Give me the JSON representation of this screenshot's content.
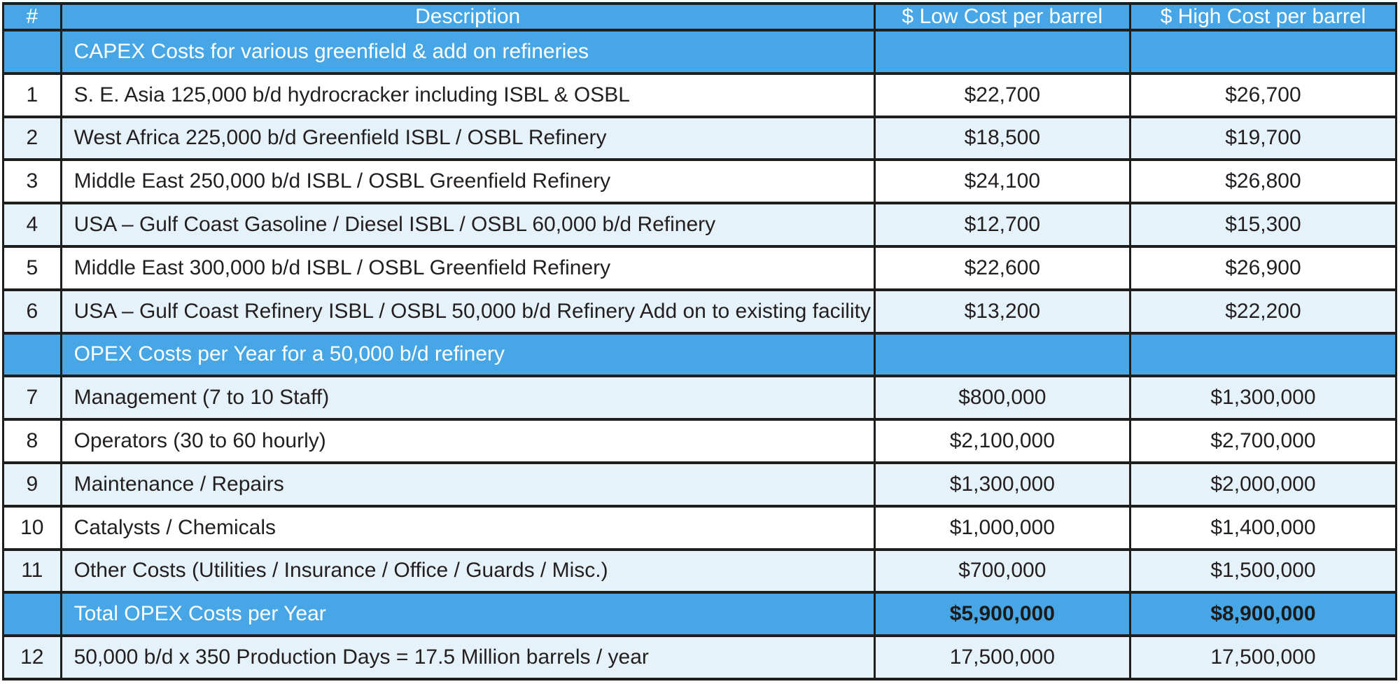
{
  "colors": {
    "header_blue": "#47a7e6",
    "row_light": "#e6f2fa",
    "row_white": "#ffffff",
    "border": "#1e1e1c",
    "text_dark": "#231f20",
    "text_light": "#ffffff"
  },
  "table": {
    "columns": {
      "num": "#",
      "description": "Description",
      "low": "$ Low Cost per barrel",
      "high": "$ High Cost per barrel"
    },
    "rows": [
      {
        "type": "section",
        "num": "",
        "description": "CAPEX Costs for various greenfield & add on refineries",
        "low": "",
        "high": ""
      },
      {
        "type": "data",
        "shade": "white",
        "num": "1",
        "description": "S. E. Asia 125,000 b/d hydrocracker including ISBL & OSBL",
        "low": "$22,700",
        "high": "$26,700"
      },
      {
        "type": "data",
        "shade": "light",
        "num": "2",
        "description": "West Africa 225,000 b/d Greenfield  ISBL / OSBL Refinery",
        "low": "$18,500",
        "high": "$19,700"
      },
      {
        "type": "data",
        "shade": "white",
        "num": "3",
        "description": "Middle East 250,000 b/d ISBL / OSBL Greenfield  Refinery",
        "low": "$24,100",
        "high": "$26,800"
      },
      {
        "type": "data",
        "shade": "light",
        "num": "4",
        "description": "USA – Gulf Coast Gasoline / Diesel ISBL / OSBL 60,000 b/d  Refinery",
        "low": "$12,700",
        "high": "$15,300"
      },
      {
        "type": "data",
        "shade": "white",
        "num": "5",
        "description": "Middle East 300,000 b/d ISBL / OSBL Greenfield Refinery",
        "low": "$22,600",
        "high": "$26,900"
      },
      {
        "type": "data",
        "shade": "light",
        "num": "6",
        "description": "USA – Gulf Coast Refinery ISBL / OSBL 50,000 b/d  Refinery Add on to existing facility",
        "low": "$13,200",
        "high": "$22,200"
      },
      {
        "type": "section",
        "num": "",
        "description": "OPEX Costs per Year for a 50,000 b/d refinery",
        "low": "",
        "high": ""
      },
      {
        "type": "data",
        "shade": "light",
        "num": "7",
        "description": "Management  (7 to 10 Staff)",
        "low": "$800,000",
        "high": "$1,300,000"
      },
      {
        "type": "data",
        "shade": "white",
        "num": "8",
        "description": "Operators (30 to 60 hourly)",
        "low": "$2,100,000",
        "high": "$2,700,000"
      },
      {
        "type": "data",
        "shade": "light",
        "num": "9",
        "description": "Maintenance / Repairs",
        "low": "$1,300,000",
        "high": "$2,000,000"
      },
      {
        "type": "data",
        "shade": "white",
        "num": "10",
        "description": "Catalysts / Chemicals",
        "low": "$1,000,000",
        "high": "$1,400,000"
      },
      {
        "type": "data",
        "shade": "light",
        "num": "11",
        "description": "Other Costs (Utilities / Insurance / Office / Guards / Misc.)",
        "low": "$700,000",
        "high": "$1,500,000"
      },
      {
        "type": "total",
        "num": "",
        "description": "Total OPEX Costs per Year",
        "low": "$5,900,000",
        "high": "$8,900,000"
      },
      {
        "type": "data",
        "shade": "light",
        "num": "12",
        "description": "50,000 b/d x 350 Production Days = 17.5 Million  barrels / year",
        "low": "17,500,000",
        "high": "17,500,000"
      }
    ]
  }
}
